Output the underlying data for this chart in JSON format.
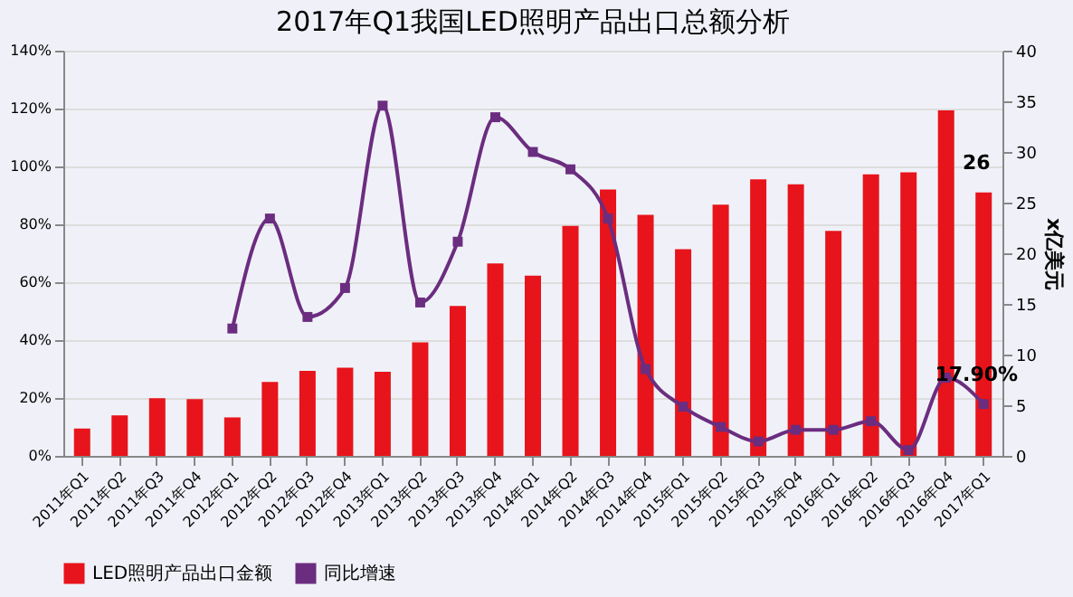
{
  "chart_data": {
    "type": "bar",
    "title": "2017年Q1我国LED照明产品出口总额分析",
    "categories": [
      "2011年Q1",
      "2011年Q2",
      "2011年Q3",
      "2011年Q4",
      "2012年Q1",
      "2012年Q2",
      "2012年Q3",
      "2012年Q4",
      "2013年Q1",
      "2013年Q2",
      "2013年Q3",
      "2013年Q4",
      "2014年Q1",
      "2014年Q2",
      "2014年Q3",
      "2014年Q4",
      "2015年Q1",
      "2015年Q2",
      "2015年Q3",
      "2015年Q4",
      "2016年Q1",
      "2016年Q2",
      "2016年Q3",
      "2016年Q4",
      "2017年Q1"
    ],
    "series": [
      {
        "name": "LED照明产品出口金额",
        "axis": "y2",
        "color": "#e8141b",
        "values": [
          2.7,
          4.0,
          5.7,
          5.6,
          3.8,
          7.3,
          8.4,
          8.7,
          8.3,
          11.2,
          14.8,
          19.0,
          17.8,
          22.7,
          26.3,
          23.8,
          20.4,
          24.8,
          27.3,
          26.8,
          22.2,
          27.8,
          28.0,
          34.1,
          26
        ],
        "value_labels": [
          null,
          null,
          null,
          null,
          null,
          null,
          null,
          null,
          null,
          null,
          null,
          null,
          null,
          null,
          null,
          null,
          null,
          null,
          null,
          null,
          null,
          null,
          null,
          null,
          "26"
        ]
      },
      {
        "name": "同比增速",
        "type": "line",
        "color": "#6b2d7f",
        "marker": "square",
        "values": [
          null,
          null,
          null,
          null,
          44,
          82,
          48,
          58,
          121,
          53,
          74,
          117,
          105,
          99,
          82,
          30,
          17,
          10,
          5,
          9,
          9,
          12,
          2,
          27,
          17.9
        ],
        "value_labels": [
          null,
          null,
          null,
          null,
          null,
          null,
          null,
          null,
          null,
          null,
          null,
          null,
          null,
          null,
          null,
          null,
          null,
          null,
          null,
          null,
          null,
          null,
          null,
          null,
          "17.90%"
        ]
      }
    ],
    "ylim": [
      0,
      140
    ],
    "yticks": [
      {
        "value": 0,
        "label": "0%"
      },
      {
        "value": 20,
        "label": "20%"
      },
      {
        "value": 40,
        "label": "40%"
      },
      {
        "value": 60,
        "label": "60%"
      },
      {
        "value": 80,
        "label": "80%"
      },
      {
        "value": 100,
        "label": "100%"
      },
      {
        "value": 120,
        "label": "120%"
      },
      {
        "value": 140,
        "label": "140%"
      }
    ],
    "y2lim": [
      0,
      40
    ],
    "y2ticks": [
      0,
      5,
      10,
      15,
      20,
      25,
      30,
      35,
      40
    ],
    "y2label": "x亿美元",
    "grid": "y",
    "legend": "bottom"
  }
}
